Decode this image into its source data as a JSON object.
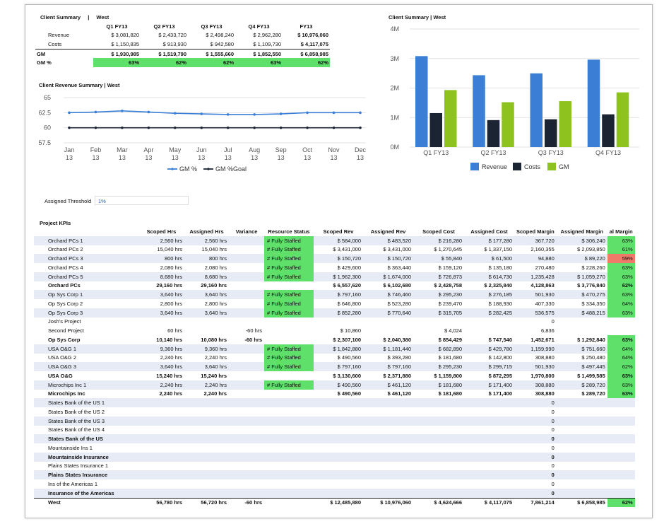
{
  "summary": {
    "title": "Client Summary",
    "region": "West",
    "quarters": [
      "Q1 FY13",
      "Q2 FY13",
      "Q3 FY13",
      "Q4 FY13",
      "FY13"
    ],
    "rows": [
      {
        "label": "Revenue",
        "values": [
          "$ 3,081,820",
          "$ 2,433,720",
          "$ 2,498,240",
          "$ 2,962,280",
          "$ 10,976,060"
        ]
      },
      {
        "label": "Costs",
        "values": [
          "$ 1,150,835",
          "$ 913,930",
          "$ 942,580",
          "$ 1,109,730",
          "$ 4,117,075"
        ]
      },
      {
        "label": "GM",
        "values": [
          "$ 1,930,985",
          "$ 1,519,790",
          "$ 1,555,660",
          "$ 1,852,550",
          "$ 6,858,985"
        ]
      },
      {
        "label": "GM %",
        "values": [
          "63%",
          "62%",
          "62%",
          "63%",
          "62%"
        ]
      }
    ]
  },
  "line_chart_title": "Client Revenue Summary | West",
  "bar_chart_title": "Client Summary | West",
  "chart_data": [
    {
      "type": "line",
      "title": "Client Revenue Summary | West",
      "categories": [
        "Jan 13",
        "Feb 13",
        "Mar 13",
        "Apr 13",
        "May 13",
        "Jun 13",
        "Jul 13",
        "Aug 13",
        "Sep 13",
        "Oct 13",
        "Nov 13",
        "Dec 13"
      ],
      "ylim": [
        57.5,
        65
      ],
      "yticks": [
        "65",
        "62.5",
        "60",
        "57.5"
      ],
      "grid": true,
      "legend": "bottom",
      "series": [
        {
          "name": "GM %",
          "color": "#3a7fd5",
          "values": [
            62.5,
            62.6,
            62.8,
            62.6,
            62.4,
            62.3,
            62.2,
            62.2,
            62.3,
            62.5,
            62.5,
            62.5
          ]
        },
        {
          "name": "GM %Goal",
          "color": "#1b2433",
          "values": [
            60,
            60,
            60,
            60,
            60,
            60,
            60,
            60,
            60,
            60,
            60,
            60
          ]
        }
      ]
    },
    {
      "type": "bar",
      "title": "Client Summary | West",
      "categories": [
        "Q1 FY13",
        "Q2 FY13",
        "Q3 FY13",
        "Q4 FY13"
      ],
      "ylim": [
        0,
        4000000
      ],
      "yticks": [
        "0M",
        "1M",
        "2M",
        "3M",
        "4M"
      ],
      "grid": true,
      "legend": "bottom",
      "series": [
        {
          "name": "Revenue",
          "color": "#3a7fd5",
          "values": [
            3081820,
            2433720,
            2498240,
            2962280
          ]
        },
        {
          "name": "Costs",
          "color": "#1b2433",
          "values": [
            1150835,
            913930,
            942580,
            1109730
          ]
        },
        {
          "name": "GM",
          "color": "#8ec21f",
          "values": [
            1930985,
            1519790,
            1555660,
            1852550
          ]
        }
      ]
    }
  ],
  "threshold": {
    "label": "Assigned Threshold",
    "value": "1%"
  },
  "kpi": {
    "title": "Project KPIs",
    "headers": [
      "",
      "Scoped Hrs",
      "Assigned Hrs",
      "Variance",
      "Resource Status",
      "Scoped Rev",
      "Assigned Rev",
      "Scoped Cost",
      "Assigned Cost",
      "Scoped Margin",
      "Assigned Margin",
      "al Margin"
    ],
    "rows": [
      {
        "name": "Orchard PCs 1",
        "bold": false,
        "shade": true,
        "cells": [
          "2,560 hrs",
          "2,560 hrs",
          "",
          "# Fully Staffed",
          "$ 584,000",
          "$ 483,520",
          "$ 216,280",
          "$ 177,280",
          "367,720",
          "$ 306,240",
          "63%"
        ],
        "status": "full",
        "marg": "green"
      },
      {
        "name": "Orchard PCs 2",
        "bold": false,
        "shade": false,
        "cells": [
          "15,040 hrs",
          "15,040 hrs",
          "",
          "# Fully Staffed",
          "$ 3,431,000",
          "$ 3,431,000",
          "$ 1,270,645",
          "$ 1,337,150",
          "2,160,355",
          "$ 2,093,850",
          "61%"
        ],
        "status": "full",
        "marg": "green"
      },
      {
        "name": "Orchard PCs 3",
        "bold": false,
        "shade": true,
        "cells": [
          "800 hrs",
          "800 hrs",
          "",
          "# Fully Staffed",
          "$ 150,720",
          "$ 150,720",
          "$ 55,840",
          "$ 61,500",
          "94,880",
          "$ 89,220",
          "59%"
        ],
        "status": "full",
        "marg": "red"
      },
      {
        "name": "Orchard PCs 4",
        "bold": false,
        "shade": false,
        "cells": [
          "2,080 hrs",
          "2,080 hrs",
          "",
          "# Fully Staffed",
          "$ 429,600",
          "$ 363,440",
          "$ 159,120",
          "$ 135,180",
          "270,480",
          "$ 228,260",
          "63%"
        ],
        "status": "full",
        "marg": "green"
      },
      {
        "name": "Orchard PCs 5",
        "bold": false,
        "shade": true,
        "cells": [
          "8,680 hrs",
          "8,680 hrs",
          "",
          "# Fully Staffed",
          "$ 1,962,300",
          "$ 1,674,000",
          "$ 726,873",
          "$ 614,730",
          "1,235,428",
          "$ 1,059,270",
          "63%"
        ],
        "status": "full",
        "marg": "green"
      },
      {
        "name": "Orchard PCs",
        "bold": true,
        "shade": false,
        "cells": [
          "29,160 hrs",
          "29,160 hrs",
          "",
          "",
          "$ 6,557,620",
          "$ 6,102,680",
          "$ 2,428,758",
          "$ 2,325,840",
          "4,128,863",
          "$ 3,776,840",
          "62%"
        ],
        "status": "",
        "marg": "green"
      },
      {
        "name": "Op Sys Corp 1",
        "bold": false,
        "shade": true,
        "cells": [
          "3,640 hrs",
          "3,640 hrs",
          "",
          "# Fully Staffed",
          "$ 797,160",
          "$ 746,460",
          "$ 295,230",
          "$ 276,185",
          "501,930",
          "$ 470,275",
          "63%"
        ],
        "status": "full",
        "marg": "green"
      },
      {
        "name": "Op Sys Corp 2",
        "bold": false,
        "shade": false,
        "cells": [
          "2,800 hrs",
          "2,800 hrs",
          "",
          "# Fully Staffed",
          "$ 646,800",
          "$ 523,280",
          "$ 239,470",
          "$ 188,930",
          "407,330",
          "$ 334,350",
          "64%"
        ],
        "status": "full",
        "marg": "green"
      },
      {
        "name": "Op Sys Corp 3",
        "bold": false,
        "shade": true,
        "cells": [
          "3,640 hrs",
          "3,640 hrs",
          "",
          "# Fully Staffed",
          "$ 852,280",
          "$ 770,640",
          "$ 315,705",
          "$ 282,425",
          "536,575",
          "$ 488,215",
          "63%"
        ],
        "status": "full",
        "marg": "green"
      },
      {
        "name": "Josh's Project",
        "bold": false,
        "shade": false,
        "cells": [
          "",
          "",
          "",
          "",
          "",
          "",
          "",
          "",
          "0",
          "",
          ""
        ],
        "status": "",
        "marg": ""
      },
      {
        "name": "Second Project",
        "bold": false,
        "shade": false,
        "cells": [
          "60 hrs",
          "",
          "-60 hrs",
          "",
          "$ 10,860",
          "",
          "$ 4,024",
          "",
          "6,836",
          "",
          ""
        ],
        "status": "",
        "marg": ""
      },
      {
        "name": "Op Sys Corp",
        "bold": true,
        "shade": false,
        "cells": [
          "10,140 hrs",
          "10,080 hrs",
          "-60 hrs",
          "",
          "$ 2,307,100",
          "$ 2,040,380",
          "$ 854,429",
          "$ 747,540",
          "1,452,671",
          "$ 1,292,840",
          "63%"
        ],
        "status": "",
        "marg": "green"
      },
      {
        "name": "USA O&G 1",
        "bold": false,
        "shade": true,
        "cells": [
          "9,360 hrs",
          "9,360 hrs",
          "",
          "# Fully Staffed",
          "$ 1,842,880",
          "$ 1,181,440",
          "$ 682,890",
          "$ 429,780",
          "1,159,990",
          "$ 751,660",
          "64%"
        ],
        "status": "full",
        "marg": "green"
      },
      {
        "name": "USA O&G 2",
        "bold": false,
        "shade": false,
        "cells": [
          "2,240 hrs",
          "2,240 hrs",
          "",
          "# Fully Staffed",
          "$ 490,560",
          "$ 393,280",
          "$ 181,680",
          "$ 142,800",
          "308,880",
          "$ 250,480",
          "64%"
        ],
        "status": "full",
        "marg": "green"
      },
      {
        "name": "USA O&G 3",
        "bold": false,
        "shade": true,
        "cells": [
          "3,640 hrs",
          "3,640 hrs",
          "",
          "# Fully Staffed",
          "$ 797,160",
          "$ 797,160",
          "$ 295,230",
          "$ 299,715",
          "501,930",
          "$ 497,445",
          "62%"
        ],
        "status": "full",
        "marg": "green"
      },
      {
        "name": "USA O&G",
        "bold": true,
        "shade": false,
        "cells": [
          "15,240 hrs",
          "15,240 hrs",
          "",
          "",
          "$ 3,130,600",
          "$ 2,371,880",
          "$ 1,159,800",
          "$ 872,295",
          "1,970,800",
          "$ 1,499,585",
          "63%"
        ],
        "status": "",
        "marg": "green"
      },
      {
        "name": "Microchips Inc 1",
        "bold": false,
        "shade": true,
        "cells": [
          "2,240 hrs",
          "2,240 hrs",
          "",
          "# Fully Staffed",
          "$ 490,560",
          "$ 461,120",
          "$ 181,680",
          "$ 171,400",
          "308,880",
          "$ 289,720",
          "63%"
        ],
        "status": "full",
        "marg": "green"
      },
      {
        "name": "Microchips Inc",
        "bold": true,
        "shade": false,
        "cells": [
          "2,240 hrs",
          "2,240 hrs",
          "",
          "",
          "$ 490,560",
          "$ 461,120",
          "$ 181,680",
          "$ 171,400",
          "308,880",
          "$ 289,720",
          "63%"
        ],
        "status": "",
        "marg": "green"
      },
      {
        "name": "States Bank of the US 1",
        "bold": false,
        "shade": true,
        "cells": [
          "",
          "",
          "",
          "",
          "",
          "",
          "",
          "",
          "0",
          "",
          ""
        ],
        "status": "",
        "marg": ""
      },
      {
        "name": "States Bank of the US 2",
        "bold": false,
        "shade": false,
        "cells": [
          "",
          "",
          "",
          "",
          "",
          "",
          "",
          "",
          "0",
          "",
          ""
        ],
        "status": "",
        "marg": ""
      },
      {
        "name": "States Bank of the US 3",
        "bold": false,
        "shade": true,
        "cells": [
          "",
          "",
          "",
          "",
          "",
          "",
          "",
          "",
          "0",
          "",
          ""
        ],
        "status": "",
        "marg": ""
      },
      {
        "name": "States Bank of the US 4",
        "bold": false,
        "shade": false,
        "cells": [
          "",
          "",
          "",
          "",
          "",
          "",
          "",
          "",
          "0",
          "",
          ""
        ],
        "status": "",
        "marg": ""
      },
      {
        "name": "States Bank of the US",
        "bold": true,
        "shade": true,
        "cells": [
          "",
          "",
          "",
          "",
          "",
          "",
          "",
          "",
          "0",
          "",
          ""
        ],
        "status": "",
        "marg": ""
      },
      {
        "name": "Mountainside Ins 1",
        "bold": false,
        "shade": false,
        "cells": [
          "",
          "",
          "",
          "",
          "",
          "",
          "",
          "",
          "0",
          "",
          ""
        ],
        "status": "",
        "marg": ""
      },
      {
        "name": "Mountainside Insurance",
        "bold": true,
        "shade": true,
        "cells": [
          "",
          "",
          "",
          "",
          "",
          "",
          "",
          "",
          "0",
          "",
          ""
        ],
        "status": "",
        "marg": ""
      },
      {
        "name": "Plains States Insurance 1",
        "bold": false,
        "shade": false,
        "cells": [
          "",
          "",
          "",
          "",
          "",
          "",
          "",
          "",
          "0",
          "",
          ""
        ],
        "status": "",
        "marg": ""
      },
      {
        "name": "Plains States Insurance",
        "bold": true,
        "shade": true,
        "cells": [
          "",
          "",
          "",
          "",
          "",
          "",
          "",
          "",
          "0",
          "",
          ""
        ],
        "status": "",
        "marg": ""
      },
      {
        "name": "Ins of the Americas 1",
        "bold": false,
        "shade": false,
        "cells": [
          "",
          "",
          "",
          "",
          "",
          "",
          "",
          "",
          "0",
          "",
          ""
        ],
        "status": "",
        "marg": ""
      },
      {
        "name": "Insurance of the Americas",
        "bold": true,
        "shade": true,
        "cells": [
          "",
          "",
          "",
          "",
          "",
          "",
          "",
          "",
          "0",
          "",
          ""
        ],
        "status": "",
        "marg": ""
      },
      {
        "name": "West",
        "bold": true,
        "shade": false,
        "total": true,
        "cells": [
          "56,780 hrs",
          "56,720 hrs",
          "-60 hrs",
          "",
          "$ 12,485,880",
          "$ 10,976,060",
          "$ 4,624,666",
          "$ 4,117,075",
          "7,861,214",
          "$ 6,858,985",
          "62%"
        ],
        "status": "",
        "marg": "green"
      }
    ]
  }
}
